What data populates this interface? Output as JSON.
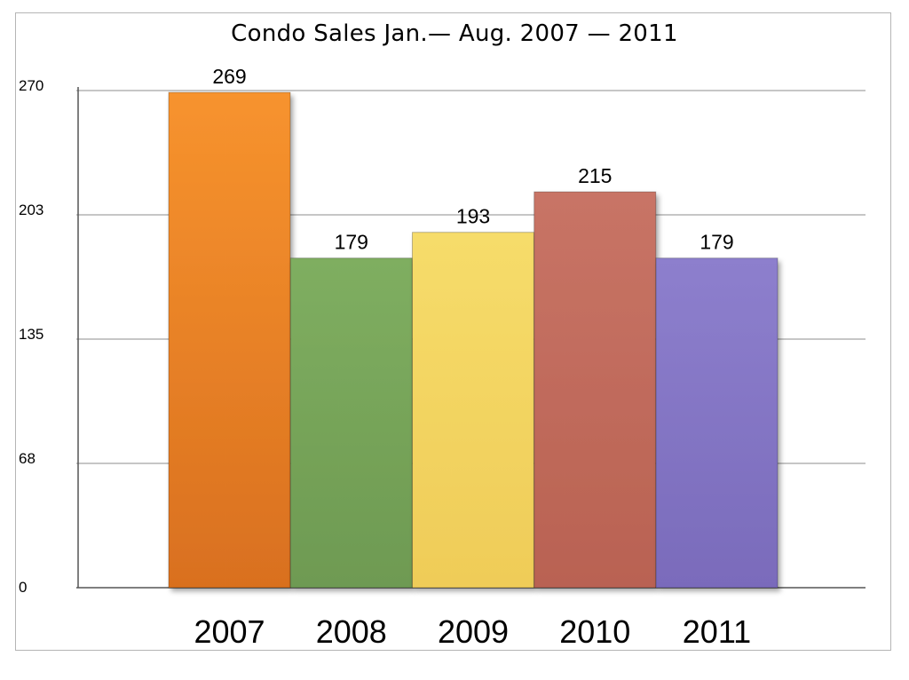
{
  "chart_data": {
    "type": "bar",
    "title": "Condo Sales Jan.— Aug. 2007 — 2011",
    "xlabel": "",
    "ylabel": "",
    "categories": [
      "2007",
      "2008",
      "2009",
      "2010",
      "2011"
    ],
    "values": [
      269,
      179,
      193,
      215,
      179
    ],
    "data_labels": [
      "269",
      "179",
      "193",
      "215",
      "179"
    ],
    "y_ticks": [
      "0",
      "68",
      "135",
      "203",
      "270"
    ],
    "y_tick_values": [
      0,
      67.5,
      135,
      202.5,
      270
    ],
    "ylim": [
      0,
      270
    ],
    "grid": true,
    "legend": "none",
    "colors": [
      "#ee8a2a",
      "#7aa65c",
      "#f3d461",
      "#c26b5d",
      "#8677c6"
    ]
  }
}
